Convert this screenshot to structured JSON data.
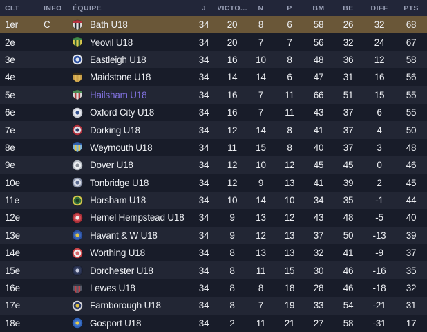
{
  "theme": {
    "header_bg": "#222639",
    "header_text": "#9aa0b6",
    "row_dark": "#181c29",
    "row_light": "#222634",
    "champion_row_bg": "#6a5738",
    "text": "#eceef2",
    "user_team_text": "#8071de"
  },
  "table": {
    "columns": [
      {
        "key": "clt",
        "label": "CLT"
      },
      {
        "key": "info",
        "label": "INFO"
      },
      {
        "key": "equipe",
        "label": "ÉQUIPE"
      },
      {
        "key": "j",
        "label": "J"
      },
      {
        "key": "v",
        "label": "VICTO..."
      },
      {
        "key": "n",
        "label": "N"
      },
      {
        "key": "p",
        "label": "P"
      },
      {
        "key": "bm",
        "label": "BM"
      },
      {
        "key": "be",
        "label": "BE"
      },
      {
        "key": "diff",
        "label": "DIFF"
      },
      {
        "key": "pts",
        "label": "PTS"
      }
    ],
    "rows": [
      {
        "pos": "1er",
        "info": "C",
        "team": "Bath U18",
        "j": 34,
        "v": 20,
        "n": 8,
        "p": 6,
        "bm": 58,
        "be": 26,
        "diff": 32,
        "pts": 68,
        "champion": true,
        "user": false,
        "badge": {
          "icon": "bath-crest-icon",
          "shape": "shield",
          "colors": [
            "#e2e2e2",
            "#b5313f",
            "#2a2a2e"
          ]
        }
      },
      {
        "pos": "2e",
        "info": "",
        "team": "Yeovil U18",
        "j": 34,
        "v": 20,
        "n": 7,
        "p": 7,
        "bm": 56,
        "be": 32,
        "diff": 24,
        "pts": 67,
        "champion": false,
        "user": false,
        "badge": {
          "icon": "yeovil-crest-icon",
          "shape": "shield",
          "colors": [
            "#d8c84e",
            "#3f8a4a",
            "#2c5e34"
          ]
        }
      },
      {
        "pos": "3e",
        "info": "",
        "team": "Eastleigh U18",
        "j": 34,
        "v": 16,
        "n": 10,
        "p": 8,
        "bm": 48,
        "be": 36,
        "diff": 12,
        "pts": 58,
        "champion": false,
        "user": false,
        "badge": {
          "icon": "eastleigh-crest-icon",
          "shape": "circle",
          "colors": [
            "#e8eaf0",
            "#2b4fa0",
            "#dfe3ec"
          ]
        }
      },
      {
        "pos": "4e",
        "info": "",
        "team": "Maidstone U18",
        "j": 34,
        "v": 14,
        "n": 14,
        "p": 6,
        "bm": 47,
        "be": 31,
        "diff": 16,
        "pts": 56,
        "champion": false,
        "user": false,
        "badge": {
          "icon": "maidstone-crest-icon",
          "shape": "shield",
          "colors": [
            "#caa04a",
            "#3a2f1a",
            "#e0b85a"
          ]
        }
      },
      {
        "pos": "5e",
        "info": "",
        "team": "Hailsham U18",
        "j": 34,
        "v": 16,
        "n": 7,
        "p": 11,
        "bm": 66,
        "be": 51,
        "diff": 15,
        "pts": 55,
        "champion": false,
        "user": true,
        "badge": {
          "icon": "hailsham-crest-icon",
          "shape": "shield",
          "colors": [
            "#dcdcdc",
            "#4a8a54",
            "#b04040"
          ]
        }
      },
      {
        "pos": "6e",
        "info": "",
        "team": "Oxford City U18",
        "j": 34,
        "v": 16,
        "n": 7,
        "p": 11,
        "bm": 43,
        "be": 37,
        "diff": 6,
        "pts": 55,
        "champion": false,
        "user": false,
        "badge": {
          "icon": "oxford-city-crest-icon",
          "shape": "circle",
          "colors": [
            "#c9cdd6",
            "#e8e9ee",
            "#33518f"
          ]
        }
      },
      {
        "pos": "7e",
        "info": "",
        "team": "Dorking U18",
        "j": 34,
        "v": 12,
        "n": 14,
        "p": 8,
        "bm": 41,
        "be": 37,
        "diff": 4,
        "pts": 50,
        "champion": false,
        "user": false,
        "badge": {
          "icon": "dorking-crest-icon",
          "shape": "circle",
          "colors": [
            "#b5333f",
            "#e0e0e6",
            "#2b3a66"
          ]
        }
      },
      {
        "pos": "8e",
        "info": "",
        "team": "Weymouth U18",
        "j": 34,
        "v": 11,
        "n": 15,
        "p": 8,
        "bm": 40,
        "be": 37,
        "diff": 3,
        "pts": 48,
        "champion": false,
        "user": false,
        "badge": {
          "icon": "weymouth-crest-icon",
          "shape": "shield",
          "colors": [
            "#7fb6dc",
            "#2f5fae",
            "#e3c44a"
          ]
        }
      },
      {
        "pos": "9e",
        "info": "",
        "team": "Dover U18",
        "j": 34,
        "v": 12,
        "n": 10,
        "p": 12,
        "bm": 45,
        "be": 45,
        "diff": 0,
        "pts": 46,
        "champion": false,
        "user": false,
        "badge": {
          "icon": "dover-crest-icon",
          "shape": "circle",
          "colors": [
            "#b8bec6",
            "#eef0f2",
            "#8a9098"
          ]
        }
      },
      {
        "pos": "10e",
        "info": "",
        "team": "Tonbridge U18",
        "j": 34,
        "v": 12,
        "n": 9,
        "p": 13,
        "bm": 41,
        "be": 39,
        "diff": 2,
        "pts": 45,
        "champion": false,
        "user": false,
        "badge": {
          "icon": "tonbridge-crest-icon",
          "shape": "circle",
          "colors": [
            "#8a93aa",
            "#d8dce6",
            "#5a6a90"
          ]
        }
      },
      {
        "pos": "11e",
        "info": "",
        "team": "Horsham U18",
        "j": 34,
        "v": 10,
        "n": 14,
        "p": 10,
        "bm": 34,
        "be": 35,
        "diff": -1,
        "pts": 44,
        "champion": false,
        "user": false,
        "badge": {
          "icon": "horsham-crest-icon",
          "shape": "circle",
          "colors": [
            "#d4c84e",
            "#2f6e3a",
            "#1d3a22"
          ]
        }
      },
      {
        "pos": "12e",
        "info": "",
        "team": "Hemel Hempstead U18",
        "j": 34,
        "v": 9,
        "n": 13,
        "p": 12,
        "bm": 43,
        "be": 48,
        "diff": -5,
        "pts": 40,
        "champion": false,
        "user": false,
        "badge": {
          "icon": "hemel-hempstead-crest-icon",
          "shape": "circle",
          "colors": [
            "#a83038",
            "#d04a52",
            "#f0ecec"
          ]
        }
      },
      {
        "pos": "13e",
        "info": "",
        "team": "Havant & W U18",
        "j": 34,
        "v": 9,
        "n": 12,
        "p": 13,
        "bm": 37,
        "be": 50,
        "diff": -13,
        "pts": 39,
        "champion": false,
        "user": false,
        "badge": {
          "icon": "havant-crest-icon",
          "shape": "circle",
          "colors": [
            "#2b4f9e",
            "#3c66b8",
            "#e2c646"
          ]
        }
      },
      {
        "pos": "14e",
        "info": "",
        "team": "Worthing U18",
        "j": 34,
        "v": 8,
        "n": 13,
        "p": 13,
        "bm": 32,
        "be": 41,
        "diff": -9,
        "pts": 37,
        "champion": false,
        "user": false,
        "badge": {
          "icon": "worthing-crest-icon",
          "shape": "circle",
          "colors": [
            "#cc4448",
            "#f0eeee",
            "#d4666a"
          ]
        }
      },
      {
        "pos": "15e",
        "info": "",
        "team": "Dorchester U18",
        "j": 34,
        "v": 8,
        "n": 11,
        "p": 15,
        "bm": 30,
        "be": 46,
        "diff": -16,
        "pts": 35,
        "champion": false,
        "user": false,
        "badge": {
          "icon": "dorchester-crest-icon",
          "shape": "circle",
          "colors": [
            "#262e4a",
            "#323c5e",
            "#c8cce0"
          ]
        }
      },
      {
        "pos": "16e",
        "info": "",
        "team": "Lewes U18",
        "j": 34,
        "v": 8,
        "n": 8,
        "p": 18,
        "bm": 28,
        "be": 46,
        "diff": -18,
        "pts": 32,
        "champion": false,
        "user": false,
        "badge": {
          "icon": "lewes-crest-icon",
          "shape": "shield",
          "colors": [
            "#565b6a",
            "#2e3340",
            "#c04048"
          ]
        }
      },
      {
        "pos": "17e",
        "info": "",
        "team": "Farnborough U18",
        "j": 34,
        "v": 8,
        "n": 7,
        "p": 19,
        "bm": 33,
        "be": 54,
        "diff": -21,
        "pts": 31,
        "champion": false,
        "user": false,
        "badge": {
          "icon": "farnborough-crest-icon",
          "shape": "circle",
          "colors": [
            "#d8d8de",
            "#2b3a66",
            "#e0c040"
          ]
        }
      },
      {
        "pos": "18e",
        "info": "",
        "team": "Gosport U18",
        "j": 34,
        "v": 2,
        "n": 11,
        "p": 21,
        "bm": 27,
        "be": 58,
        "diff": -31,
        "pts": 17,
        "champion": false,
        "user": false,
        "badge": {
          "icon": "gosport-crest-icon",
          "shape": "circle",
          "colors": [
            "#2f62b8",
            "#3f74cc",
            "#e8cc4a"
          ]
        }
      }
    ]
  }
}
